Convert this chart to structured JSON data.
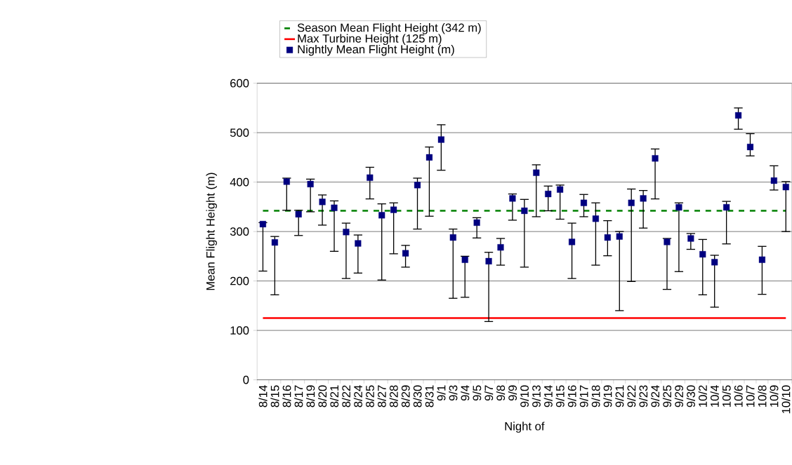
{
  "chart_data": {
    "type": "scatter",
    "xlabel": "Night of",
    "ylabel": "Mean Flight Height (m)",
    "categories": [
      "8/14",
      "8/15",
      "8/16",
      "8/17",
      "8/19",
      "8/20",
      "8/21",
      "8/22",
      "8/24",
      "8/25",
      "8/27",
      "8/28",
      "8/29",
      "8/30",
      "8/31",
      "9/1",
      "9/3",
      "9/4",
      "9/5",
      "9/7",
      "9/8",
      "9/9",
      "9/10",
      "9/13",
      "9/14",
      "9/15",
      "9/16",
      "9/17",
      "9/18",
      "9/19",
      "9/21",
      "9/22",
      "9/23",
      "9/24",
      "9/25",
      "9/29",
      "9/30",
      "10/2",
      "10/4",
      "10/5",
      "10/6",
      "10/7",
      "10/8",
      "10/9",
      "10/10"
    ],
    "series": [
      {
        "name": "Nightly Mean Flight Height (m)",
        "color": "#000080",
        "values": [
          315,
          278,
          401,
          335,
          396,
          360,
          348,
          299,
          276,
          409,
          333,
          344,
          256,
          394,
          450,
          486,
          288,
          243,
          318,
          240,
          268,
          367,
          342,
          419,
          376,
          385,
          279,
          358,
          326,
          288,
          290,
          358,
          367,
          448,
          279,
          349,
          286,
          254,
          238,
          349,
          535,
          471,
          243,
          403,
          390
        ],
        "errors": [
          [
            220,
            318
          ],
          [
            172,
            290
          ],
          [
            343,
            408
          ],
          [
            292,
            343
          ],
          [
            340,
            406
          ],
          [
            313,
            374
          ],
          [
            260,
            362
          ],
          [
            205,
            317
          ],
          [
            216,
            293
          ],
          [
            366,
            430
          ],
          [
            202,
            356
          ],
          [
            255,
            358
          ],
          [
            228,
            272
          ],
          [
            305,
            408
          ],
          [
            331,
            471
          ],
          [
            424,
            516
          ],
          [
            165,
            305
          ],
          [
            167,
            250
          ],
          [
            287,
            328
          ],
          [
            118,
            258
          ],
          [
            232,
            286
          ],
          [
            323,
            376
          ],
          [
            228,
            365
          ],
          [
            330,
            435
          ],
          [
            342,
            392
          ],
          [
            325,
            394
          ],
          [
            205,
            317
          ],
          [
            330,
            375
          ],
          [
            232,
            358
          ],
          [
            251,
            322
          ],
          [
            140,
            300
          ],
          [
            199,
            386
          ],
          [
            307,
            383
          ],
          [
            366,
            467
          ],
          [
            183,
            286
          ],
          [
            219,
            358
          ],
          [
            264,
            296
          ],
          [
            172,
            284
          ],
          [
            147,
            252
          ],
          [
            275,
            361
          ],
          [
            507,
            550
          ],
          [
            453,
            498
          ],
          [
            173,
            270
          ],
          [
            384,
            433
          ],
          [
            300,
            401
          ]
        ]
      }
    ],
    "ref_lines": [
      {
        "axis": "y",
        "value": 342,
        "label": "Season Mean Flight Height (342 m)",
        "color": "#008000",
        "line_style": "dashed"
      },
      {
        "axis": "y",
        "value": 125,
        "label": "Max Turbine Height (125 m)",
        "color": "#ff0000",
        "line_style": "solid"
      }
    ],
    "ylim": [
      0,
      600
    ],
    "yticks": [
      0,
      100,
      200,
      300,
      400,
      500,
      600
    ],
    "grid": "y",
    "legend": "top",
    "marker": "square"
  }
}
